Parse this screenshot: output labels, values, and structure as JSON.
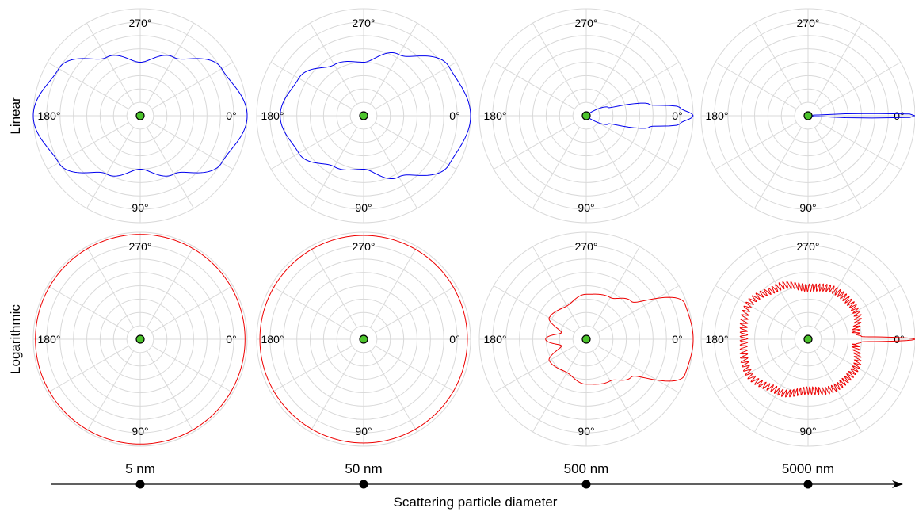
{
  "row_labels": {
    "linear": "Linear",
    "logarithmic": "Logarithmic"
  },
  "angle_labels": {
    "deg0": "0°",
    "deg90": "90°",
    "deg180": "180°",
    "deg270": "270°"
  },
  "axis": {
    "title": "Scattering particle diameter",
    "sizes": [
      "5 nm",
      "50 nm",
      "500 nm",
      "5000 nm"
    ]
  },
  "colors": {
    "linear_curve": "#0000ee",
    "log_curve": "#ee0000",
    "grid": "#d9d9d9",
    "center_marker": "#4cc42c",
    "axis": "#000000"
  },
  "chart_data": [
    {
      "type": "polar",
      "scale": "linear",
      "particle_diameter": "5 nm",
      "theta_deg": [
        0,
        30,
        60,
        90,
        120,
        150,
        180,
        210,
        240,
        270,
        300,
        330
      ],
      "r_rel": [
        1.0,
        0.88,
        0.63,
        0.5,
        0.63,
        0.88,
        1.0,
        0.88,
        0.63,
        0.5,
        0.63,
        0.88
      ]
    },
    {
      "type": "polar",
      "scale": "linear",
      "particle_diameter": "50 nm",
      "theta_deg": [
        0,
        30,
        60,
        90,
        120,
        150,
        180,
        210,
        240,
        270,
        300,
        330
      ],
      "r_rel": [
        1.0,
        0.92,
        0.66,
        0.5,
        0.55,
        0.7,
        0.78,
        0.7,
        0.55,
        0.5,
        0.66,
        0.92
      ]
    },
    {
      "type": "polar",
      "scale": "linear",
      "particle_diameter": "500 nm",
      "theta_deg": [
        0,
        5,
        10,
        20,
        40,
        90,
        180
      ],
      "r_rel": [
        1.0,
        0.88,
        0.6,
        0.22,
        0.04,
        0.01,
        0.0
      ]
    },
    {
      "type": "polar",
      "scale": "linear",
      "particle_diameter": "5000 nm",
      "theta_deg": [
        0,
        1,
        2,
        4,
        8,
        90,
        180
      ],
      "r_rel": [
        1.0,
        0.95,
        0.6,
        0.1,
        0.02,
        0.0,
        0.0
      ]
    },
    {
      "type": "polar",
      "scale": "log",
      "particle_diameter": "5 nm",
      "theta_deg": [
        0,
        90,
        180,
        270
      ],
      "r_rel": [
        0.98,
        0.98,
        0.98,
        0.98
      ]
    },
    {
      "type": "polar",
      "scale": "log",
      "particle_diameter": "50 nm",
      "theta_deg": [
        0,
        90,
        180,
        270
      ],
      "r_rel": [
        0.97,
        0.97,
        0.97,
        0.97
      ]
    },
    {
      "type": "polar",
      "scale": "log",
      "particle_diameter": "500 nm",
      "theta_deg": [
        0,
        20,
        40,
        60,
        90,
        120,
        150,
        165,
        180
      ],
      "r_rel": [
        1.0,
        0.98,
        0.55,
        0.45,
        0.42,
        0.36,
        0.4,
        0.24,
        0.38
      ]
    },
    {
      "type": "polar",
      "scale": "log",
      "particle_diameter": "5000 nm",
      "theta_deg": [
        0,
        3,
        6,
        30,
        60,
        90,
        120,
        150,
        180
      ],
      "r_rel": [
        1.0,
        0.5,
        0.45,
        0.52,
        0.52,
        0.48,
        0.56,
        0.64,
        0.6
      ]
    }
  ]
}
